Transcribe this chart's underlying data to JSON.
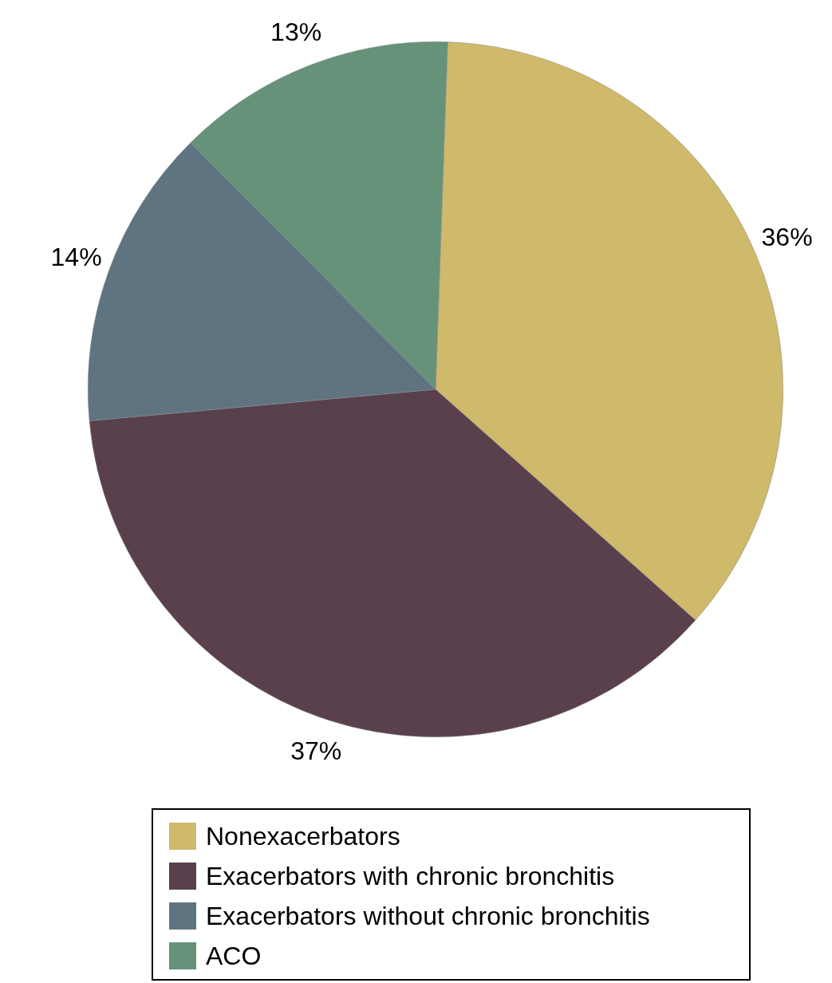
{
  "chart_data": {
    "type": "pie",
    "categories": [
      "Nonexacerbators",
      "Exacerbators with chronic bronchitis",
      "Exacerbators without chronic bronchitis",
      "ACO"
    ],
    "values": [
      36,
      37,
      14,
      13
    ],
    "colors": [
      "#cfb96a",
      "#5a404c",
      "#5e7480",
      "#66927a"
    ],
    "value_labels": [
      "36%",
      "37%",
      "14%",
      "13%"
    ],
    "legend": "bottom"
  }
}
